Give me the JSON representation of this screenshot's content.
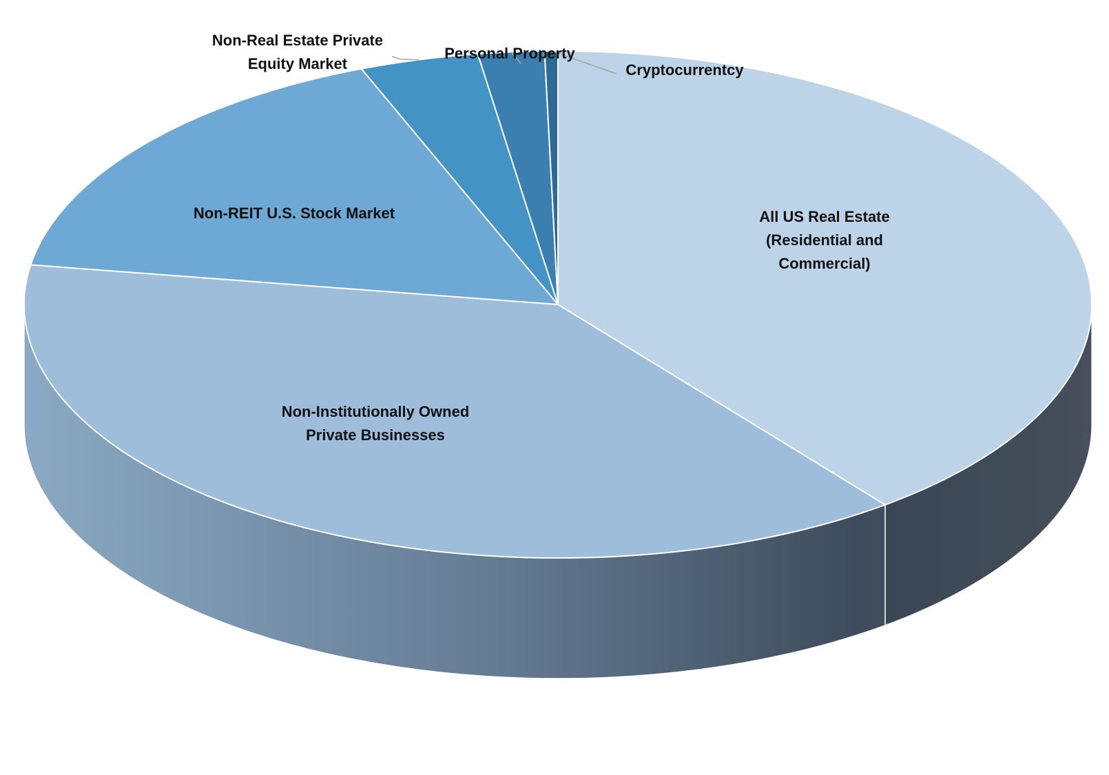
{
  "chart_data": {
    "type": "pie",
    "style": "3d-exploded-tilt",
    "title": "",
    "legend": "none",
    "slices": [
      {
        "label": "All US Real Estate (Residential and Commercial)",
        "value": 39.5,
        "color": "#bdd3e7",
        "label_mode": "inside"
      },
      {
        "label": "Non-Institutionally Owned Private Businesses",
        "value": 38.0,
        "color": "#9dbddb",
        "label_mode": "inside"
      },
      {
        "label": "Non-REIT U.S. Stock Market",
        "value": 16.5,
        "color": "#6ea8d4",
        "label_mode": "inside"
      },
      {
        "label": "Non-Real Estate Private Equity Market",
        "value": 3.6,
        "color": "#4493c5",
        "label_mode": "outside"
      },
      {
        "label": "Personal Property",
        "value": 2.0,
        "color": "#3a7fb0",
        "label_mode": "outside"
      },
      {
        "label": "Cryptocurrentcy",
        "value": 0.4,
        "color": "#2d6a96",
        "label_mode": "outside"
      }
    ],
    "label_lines": [
      [
        "All US Real Estate",
        "(Residential and",
        "Commercial)"
      ],
      [
        "Non-Institutionally Owned",
        "Private Businesses"
      ],
      [
        "Non-REIT U.S. Stock Market"
      ],
      [
        "Non-Real Estate Private",
        "Equity Market"
      ],
      [
        "Personal Property"
      ],
      [
        "Cryptocurrentcy"
      ]
    ]
  }
}
